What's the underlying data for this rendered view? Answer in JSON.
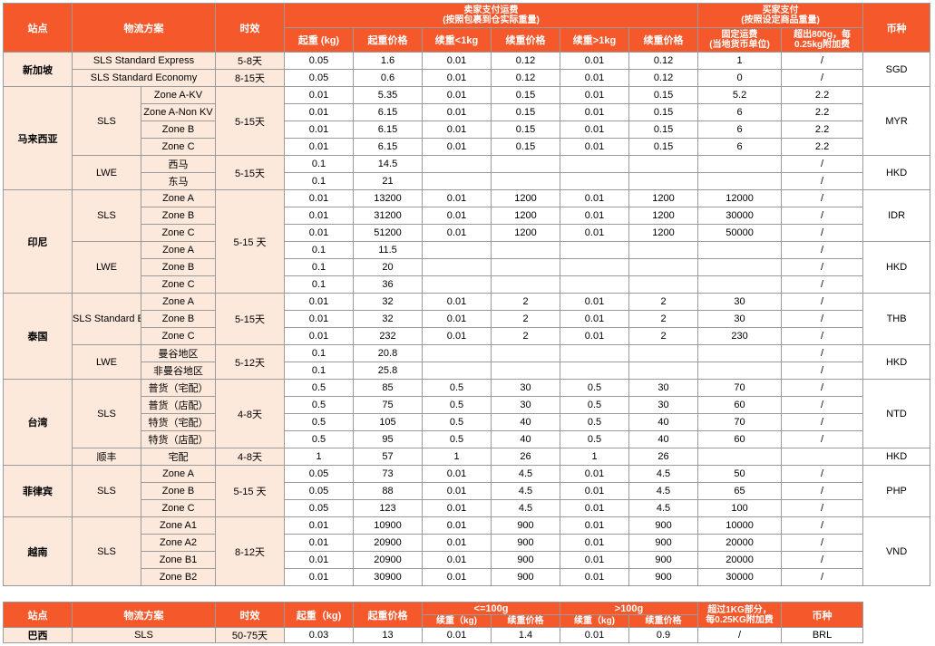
{
  "header": {
    "site": "站点",
    "plan": "物流方案",
    "time": "时效",
    "seller_title": "卖家支付运费",
    "seller_sub": "(按照包裹到仓实际重量)",
    "buyer_title": "买家支付",
    "buyer_sub": "(按照设定商品重量)",
    "currency": "币种",
    "first_weight": "起重 (kg)",
    "first_price": "起重价格",
    "cont_lt1": "续重<1kg",
    "cont_lt1_price": "续重价格",
    "cont_gt1": "续重>1kg",
    "cont_gt1_price": "续重价格",
    "fixed_fee": "固定运费",
    "fixed_fee_sub": "(当地货币单位)",
    "over_800": "超出800g，每",
    "over_800_sub": "0.25kg附加费"
  },
  "table1": [
    {
      "site": "新加坡",
      "currency": "SGD",
      "groups": [
        {
          "plan": "SLS Standard Express",
          "time": "5-8天",
          "rows": [
            {
              "zone": "",
              "v": [
                "0.05",
                "1.6",
                "0.01",
                "0.12",
                "0.01",
                "0.12",
                "1",
                "/"
              ]
            }
          ]
        },
        {
          "plan": "SLS Standard Economy",
          "time": "8-15天",
          "rows": [
            {
              "zone": "",
              "v": [
                "0.05",
                "0.6",
                "0.01",
                "0.12",
                "0.01",
                "0.12",
                "0",
                "/"
              ]
            }
          ]
        }
      ]
    },
    {
      "site": "马来西亚",
      "currencies": [
        "MYR",
        "HKD"
      ],
      "groups": [
        {
          "plan": "SLS",
          "time": "5-15天",
          "rows": [
            {
              "zone": "Zone A-KV",
              "v": [
                "0.01",
                "5.35",
                "0.01",
                "0.15",
                "0.01",
                "0.15",
                "5.2",
                "2.2"
              ]
            },
            {
              "zone": "Zone A-Non KV",
              "v": [
                "0.01",
                "6.15",
                "0.01",
                "0.15",
                "0.01",
                "0.15",
                "6",
                "2.2"
              ]
            },
            {
              "zone": "Zone B",
              "v": [
                "0.01",
                "6.15",
                "0.01",
                "0.15",
                "0.01",
                "0.15",
                "6",
                "2.2"
              ]
            },
            {
              "zone": "Zone C",
              "v": [
                "0.01",
                "6.15",
                "0.01",
                "0.15",
                "0.01",
                "0.15",
                "6",
                "2.2"
              ]
            }
          ]
        },
        {
          "plan": "LWE",
          "time": "5-15天",
          "rows": [
            {
              "zone": "西马",
              "v": [
                "0.1",
                "14.5",
                "",
                "",
                "",
                "",
                "",
                "/"
              ]
            },
            {
              "zone": "东马",
              "v": [
                "0.1",
                "21",
                "",
                "",
                "",
                "",
                "",
                "/"
              ]
            }
          ]
        }
      ]
    },
    {
      "site": "印尼",
      "currencies": [
        "IDR",
        "HKD"
      ],
      "time": "5-15 天",
      "groups": [
        {
          "plan": "SLS",
          "rows": [
            {
              "zone": "Zone A",
              "v": [
                "0.01",
                "13200",
                "0.01",
                "1200",
                "0.01",
                "1200",
                "12000",
                "/"
              ]
            },
            {
              "zone": "Zone B",
              "v": [
                "0.01",
                "31200",
                "0.01",
                "1200",
                "0.01",
                "1200",
                "30000",
                "/"
              ]
            },
            {
              "zone": "Zone C",
              "v": [
                "0.01",
                "51200",
                "0.01",
                "1200",
                "0.01",
                "1200",
                "50000",
                "/"
              ]
            }
          ]
        },
        {
          "plan": "LWE",
          "rows": [
            {
              "zone": "Zone A",
              "v": [
                "0.1",
                "11.5",
                "",
                "",
                "",
                "",
                "",
                "/"
              ]
            },
            {
              "zone": "Zone B",
              "v": [
                "0.1",
                "20",
                "",
                "",
                "",
                "",
                "",
                "/"
              ]
            },
            {
              "zone": "Zone C",
              "v": [
                "0.1",
                "36",
                "",
                "",
                "",
                "",
                "",
                "/"
              ]
            }
          ]
        }
      ]
    },
    {
      "site": "泰国",
      "currencies": [
        "THB",
        "HKD"
      ],
      "groups": [
        {
          "plan": "SLS Standard Express",
          "time": "5-15天",
          "rows": [
            {
              "zone": "Zone A",
              "v": [
                "0.01",
                "32",
                "0.01",
                "2",
                "0.01",
                "2",
                "30",
                "/"
              ]
            },
            {
              "zone": "Zone B",
              "v": [
                "0.01",
                "32",
                "0.01",
                "2",
                "0.01",
                "2",
                "30",
                "/"
              ]
            },
            {
              "zone": "Zone C",
              "v": [
                "0.01",
                "232",
                "0.01",
                "2",
                "0.01",
                "2",
                "230",
                "/"
              ]
            }
          ]
        },
        {
          "plan": "LWE",
          "time": "5-12天",
          "rows": [
            {
              "zone": "曼谷地区",
              "v": [
                "0.1",
                "20.8",
                "",
                "",
                "",
                "",
                "",
                "/"
              ]
            },
            {
              "zone": "非曼谷地区",
              "v": [
                "0.1",
                "25.8",
                "",
                "",
                "",
                "",
                "",
                "/"
              ]
            }
          ]
        }
      ]
    },
    {
      "site": "台湾",
      "currencies": [
        "NTD",
        "HKD"
      ],
      "groups": [
        {
          "plan": "SLS",
          "time": "4-8天",
          "rows": [
            {
              "zone": "普货（宅配）",
              "v": [
                "0.5",
                "85",
                "0.5",
                "30",
                "0.5",
                "30",
                "70",
                "/"
              ]
            },
            {
              "zone": "普货（店配）",
              "v": [
                "0.5",
                "75",
                "0.5",
                "30",
                "0.5",
                "30",
                "60",
                "/"
              ]
            },
            {
              "zone": "特货（宅配）",
              "v": [
                "0.5",
                "105",
                "0.5",
                "40",
                "0.5",
                "40",
                "70",
                "/"
              ]
            },
            {
              "zone": "特货（店配）",
              "v": [
                "0.5",
                "95",
                "0.5",
                "40",
                "0.5",
                "40",
                "60",
                "/"
              ]
            }
          ]
        },
        {
          "plan": "顺丰",
          "time": "4-8天",
          "rows": [
            {
              "zone": "宅配",
              "v": [
                "1",
                "57",
                "1",
                "26",
                "1",
                "26",
                "",
                ""
              ]
            }
          ]
        }
      ]
    },
    {
      "site": "菲律宾",
      "currency": "PHP",
      "groups": [
        {
          "plan": "SLS",
          "time": "5-15 天",
          "rows": [
            {
              "zone": "Zone A",
              "v": [
                "0.05",
                "73",
                "0.01",
                "4.5",
                "0.01",
                "4.5",
                "50",
                "/"
              ]
            },
            {
              "zone": "Zone B",
              "v": [
                "0.05",
                "88",
                "0.01",
                "4.5",
                "0.01",
                "4.5",
                "65",
                "/"
              ]
            },
            {
              "zone": "Zone C",
              "v": [
                "0.05",
                "123",
                "0.01",
                "4.5",
                "0.01",
                "4.5",
                "100",
                "/"
              ]
            }
          ]
        }
      ]
    },
    {
      "site": "越南",
      "currency": "VND",
      "groups": [
        {
          "plan": "SLS",
          "time": "8-12天",
          "rows": [
            {
              "zone": "Zone A1",
              "v": [
                "0.01",
                "10900",
                "0.01",
                "900",
                "0.01",
                "900",
                "10000",
                "/"
              ]
            },
            {
              "zone": "Zone A2",
              "v": [
                "0.01",
                "20900",
                "0.01",
                "900",
                "0.01",
                "900",
                "20000",
                "/"
              ]
            },
            {
              "zone": "Zone B1",
              "v": [
                "0.01",
                "20900",
                "0.01",
                "900",
                "0.01",
                "900",
                "20000",
                "/"
              ]
            },
            {
              "zone": "Zone B2",
              "v": [
                "0.01",
                "30900",
                "0.01",
                "900",
                "0.01",
                "900",
                "30000",
                "/"
              ]
            }
          ]
        }
      ]
    }
  ],
  "table2": {
    "header": {
      "site": "站点",
      "plan": "物流方案",
      "time": "时效",
      "first_weight": "起重（kg)",
      "first_price": "起重价格",
      "le100": "<=100g",
      "gt100": ">100g",
      "cont_weight": "续重（kg)",
      "cont_price": "续重价格",
      "over1kg": "超过1KG部分，",
      "over1kg_sub": "每0.25KG附加费",
      "currency": "币种"
    },
    "row": {
      "site": "巴西",
      "plan": "SLS",
      "time": "50-75天",
      "v": [
        "0.03",
        "13",
        "0.01",
        "1.4",
        "0.01",
        "0.9",
        "/",
        "BRL"
      ]
    }
  }
}
